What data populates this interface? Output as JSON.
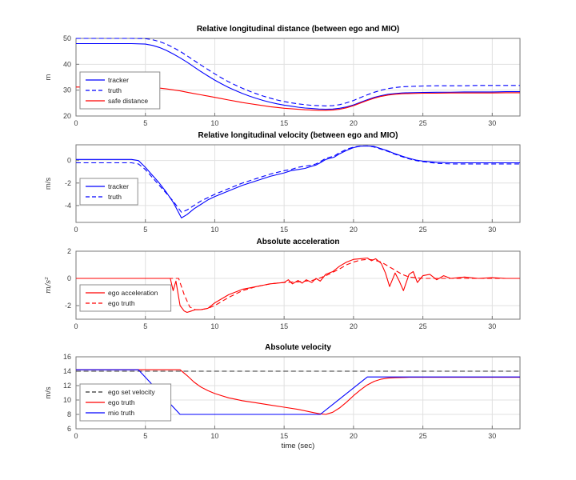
{
  "figure": {
    "xlabel": "time (sec)",
    "background": "#ffffff",
    "axis_color": "#7a7a7a",
    "tick_text_color": "#404040",
    "grid_color": "#e0e0e0",
    "legend_border_color": "#8c8c8c"
  },
  "chart_data": [
    {
      "type": "line",
      "title": "Relative longitudinal distance (between ego and MIO)",
      "ylabel": "m",
      "ylabel_style": "normal",
      "xlim": [
        0,
        32
      ],
      "ylim": [
        20,
        50
      ],
      "xticks": [
        0,
        5,
        10,
        15,
        20,
        25,
        30
      ],
      "yticks": [
        20,
        30,
        40,
        50
      ],
      "grid": true,
      "legend": {
        "offset": [
          5,
          42
        ]
      },
      "series": [
        {
          "name": "tracker",
          "color": "#0000ff",
          "dash": false,
          "x": [
            0,
            1,
            2,
            3,
            4,
            5,
            5.5,
            6,
            6.5,
            7,
            7.5,
            8,
            8.5,
            9,
            9.5,
            10,
            10.5,
            11,
            11.5,
            12,
            12.5,
            13,
            13.5,
            14,
            14.5,
            15,
            15.5,
            16,
            16.5,
            17,
            17.5,
            18,
            18.5,
            19,
            19.5,
            20,
            20.5,
            21,
            21.5,
            22,
            22.5,
            23,
            23.5,
            24,
            25,
            26,
            27,
            28,
            29,
            30,
            31,
            32
          ],
          "y": [
            48,
            48,
            48,
            48,
            48,
            47.8,
            47.3,
            46.5,
            45.4,
            44,
            42.5,
            40.8,
            39,
            37.2,
            35.5,
            33.9,
            32.4,
            31,
            29.8,
            28.7,
            27.7,
            26.8,
            26,
            25.3,
            24.7,
            24.2,
            23.8,
            23.4,
            23.1,
            22.9,
            22.7,
            22.6,
            22.7,
            23,
            23.5,
            24.3,
            25.3,
            26.3,
            27.2,
            27.9,
            28.4,
            28.7,
            28.9,
            29,
            29.1,
            29.2,
            29.2,
            29.3,
            29.3,
            29.3,
            29.4,
            29.4
          ]
        },
        {
          "name": "truth",
          "color": "#0000ff",
          "dash": true,
          "x": [
            0,
            1,
            2,
            3,
            4,
            5,
            5.5,
            6,
            6.5,
            7,
            7.5,
            8,
            8.5,
            9,
            9.5,
            10,
            10.5,
            11,
            11.5,
            12,
            12.5,
            13,
            13.5,
            14,
            14.5,
            15,
            15.5,
            16,
            16.5,
            17,
            17.5,
            18,
            18.5,
            19,
            19.5,
            20,
            20.5,
            21,
            21.5,
            22,
            22.5,
            23,
            23.5,
            24,
            25,
            26,
            27,
            28,
            29,
            30,
            31,
            32
          ],
          "y": [
            50,
            50,
            50,
            50,
            50,
            49.9,
            49.5,
            48.8,
            47.8,
            46.5,
            45,
            43.3,
            41.5,
            39.7,
            38,
            36.3,
            34.7,
            33.2,
            31.9,
            30.7,
            29.6,
            28.6,
            27.7,
            26.9,
            26.2,
            25.6,
            25.1,
            24.7,
            24.4,
            24.1,
            24,
            23.9,
            24,
            24.4,
            25.1,
            26,
            27.1,
            28.2,
            29.2,
            30,
            30.6,
            31,
            31.3,
            31.4,
            31.6,
            31.7,
            31.7,
            31.7,
            31.8,
            31.8,
            31.8,
            31.8
          ]
        },
        {
          "name": "safe distance",
          "color": "#ff0000",
          "dash": false,
          "x": [
            0,
            1,
            2,
            3,
            4,
            5,
            5.5,
            6,
            6.5,
            7,
            7.5,
            8,
            8.5,
            9,
            9.5,
            10,
            10.5,
            11,
            11.5,
            12,
            12.5,
            13,
            13.5,
            14,
            14.5,
            15,
            15.5,
            16,
            16.5,
            17,
            17.5,
            18,
            18.5,
            19,
            19.5,
            20,
            20.5,
            21,
            21.5,
            22,
            22.5,
            23,
            23.5,
            24,
            25,
            26,
            27,
            28,
            29,
            30,
            31,
            32
          ],
          "y": [
            31.2,
            31.2,
            31.2,
            31.2,
            31.2,
            31.1,
            31,
            30.8,
            30.5,
            30.1,
            29.7,
            29.2,
            28.7,
            28.2,
            27.7,
            27.2,
            26.7,
            26.2,
            25.7,
            25.2,
            24.8,
            24.4,
            24,
            23.6,
            23.3,
            23,
            22.8,
            22.6,
            22.4,
            22.3,
            22.2,
            22.2,
            22.3,
            22.6,
            23.2,
            24,
            25,
            26,
            26.9,
            27.6,
            28.1,
            28.4,
            28.6,
            28.7,
            28.8,
            28.8,
            28.9,
            28.9,
            28.9,
            28.9,
            29,
            29
          ]
        }
      ]
    },
    {
      "type": "line",
      "title": "Relative longitudinal velocity (between ego and MIO)",
      "ylabel": "m/s",
      "ylabel_style": "normal",
      "xlim": [
        0,
        32
      ],
      "ylim": [
        -5.5,
        1.4
      ],
      "xticks": [
        0,
        5,
        10,
        15,
        20,
        25,
        30
      ],
      "yticks": [
        -4,
        -2,
        0
      ],
      "grid": true,
      "legend": {
        "offset": [
          5,
          42
        ]
      },
      "series": [
        {
          "name": "tracker",
          "color": "#0000ff",
          "dash": false,
          "x": [
            0,
            1,
            2,
            3,
            4,
            4.5,
            5,
            5.5,
            6,
            6.5,
            7,
            7.3,
            7.6,
            8,
            8.5,
            9,
            9.5,
            10,
            11,
            12,
            13,
            14,
            15,
            15.5,
            16,
            16.5,
            17,
            17.3,
            17.6,
            18,
            18.3,
            18.6,
            19,
            19.5,
            20,
            20.5,
            21,
            21.5,
            22,
            22.5,
            23,
            23.5,
            24,
            24.5,
            25,
            26,
            27,
            28,
            29,
            30,
            31,
            32
          ],
          "y": [
            0.1,
            0.1,
            0.1,
            0.1,
            0.1,
            0,
            -0.6,
            -1.3,
            -2,
            -2.8,
            -3.7,
            -4.4,
            -5.1,
            -4.8,
            -4.3,
            -3.9,
            -3.5,
            -3.2,
            -2.7,
            -2.2,
            -1.8,
            -1.4,
            -1.1,
            -0.9,
            -0.8,
            -0.7,
            -0.5,
            -0.4,
            -0.2,
            0.1,
            0.2,
            0.3,
            0.6,
            0.9,
            1.15,
            1.28,
            1.3,
            1.25,
            1.05,
            0.85,
            0.6,
            0.4,
            0.2,
            0.05,
            -0.05,
            -0.15,
            -0.2,
            -0.2,
            -0.2,
            -0.2,
            -0.2,
            -0.2
          ]
        },
        {
          "name": "truth",
          "color": "#0000ff",
          "dash": true,
          "x": [
            0,
            1,
            2,
            3,
            4,
            4.5,
            5,
            5.5,
            6,
            6.5,
            7,
            7.3,
            7.6,
            8,
            8.5,
            9,
            9.5,
            10,
            11,
            12,
            13,
            14,
            15,
            15.5,
            16,
            16.5,
            17,
            17.3,
            17.6,
            18,
            18.3,
            18.6,
            19,
            19.5,
            20,
            20.5,
            21,
            21.5,
            22,
            22.5,
            23,
            23.5,
            24,
            24.5,
            25,
            26,
            27,
            28,
            29,
            30,
            31,
            32
          ],
          "y": [
            -0.2,
            -0.2,
            -0.2,
            -0.2,
            -0.2,
            -0.3,
            -0.8,
            -1.5,
            -2.2,
            -2.9,
            -3.6,
            -4.1,
            -4.6,
            -4.4,
            -4,
            -3.6,
            -3.3,
            -3,
            -2.5,
            -2,
            -1.6,
            -1.2,
            -0.9,
            -0.8,
            -0.6,
            -0.5,
            -0.4,
            -0.3,
            -0.1,
            0.2,
            0.3,
            0.4,
            0.7,
            1,
            1.2,
            1.3,
            1.3,
            1.2,
            1,
            0.8,
            0.55,
            0.35,
            0.15,
            0,
            -0.1,
            -0.25,
            -0.3,
            -0.3,
            -0.3,
            -0.3,
            -0.3,
            -0.3
          ]
        }
      ]
    },
    {
      "type": "line",
      "title": "Absolute acceleration",
      "ylabel": "m/s²",
      "ylabel_style": "italic",
      "xlim": [
        0,
        32
      ],
      "ylim": [
        -3,
        2
      ],
      "xticks": [
        0,
        5,
        10,
        15,
        20,
        25,
        30
      ],
      "yticks": [
        -2,
        0,
        2
      ],
      "grid": true,
      "legend": {
        "offset": [
          5,
          42
        ]
      },
      "series": [
        {
          "name": "ego acceleration",
          "color": "#ff0000",
          "dash": false,
          "x": [
            0,
            1,
            2,
            3,
            4,
            5,
            6,
            6.8,
            7,
            7.2,
            7.5,
            7.8,
            8,
            8.3,
            8.6,
            9,
            9.5,
            10,
            10.5,
            11,
            11.5,
            12,
            12.5,
            13,
            13.5,
            14,
            14.5,
            15,
            15.3,
            15.6,
            16,
            16.3,
            16.6,
            17,
            17.3,
            17.6,
            18,
            18.5,
            19,
            19.5,
            20,
            20.5,
            21,
            21.3,
            21.6,
            22,
            22.3,
            22.6,
            23,
            23.3,
            23.6,
            24,
            24.3,
            24.6,
            25,
            25.5,
            26,
            26.5,
            27,
            28,
            29,
            30,
            31,
            32
          ],
          "y": [
            0,
            0,
            0,
            0,
            0,
            0,
            0,
            0,
            -0.9,
            -0.2,
            -2.0,
            -2.4,
            -2.5,
            -2.4,
            -2.3,
            -2.3,
            -2.2,
            -1.8,
            -1.5,
            -1.2,
            -1.0,
            -0.8,
            -0.7,
            -0.6,
            -0.5,
            -0.4,
            -0.35,
            -0.3,
            -0.1,
            -0.4,
            -0.15,
            -0.35,
            -0.1,
            -0.3,
            0,
            -0.2,
            0.3,
            0.5,
            0.9,
            1.2,
            1.4,
            1.45,
            1.5,
            1.3,
            1.45,
            1.1,
            0.4,
            -0.6,
            0.4,
            -0.2,
            -0.9,
            0.3,
            0.5,
            -0.3,
            0.2,
            0.3,
            -0.1,
            0.2,
            0,
            0.1,
            0,
            0.05,
            0,
            0
          ]
        },
        {
          "name": "ego truth",
          "color": "#ff0000",
          "dash": true,
          "x": [
            0,
            2,
            4,
            6,
            7.4,
            7.8,
            8.2,
            8.6,
            9,
            9.5,
            10,
            11,
            12,
            13,
            14,
            15,
            16,
            17,
            17.5,
            18,
            18.5,
            19,
            19.5,
            20,
            20.5,
            21,
            21.5,
            22,
            22.5,
            23,
            23.5,
            24,
            25,
            26,
            28,
            30,
            32
          ],
          "y": [
            0,
            0,
            0,
            0,
            0,
            -1.2,
            -2.1,
            -2.3,
            -2.3,
            -2.2,
            -2.0,
            -1.4,
            -0.9,
            -0.6,
            -0.4,
            -0.3,
            -0.25,
            -0.15,
            0,
            0.2,
            0.45,
            0.7,
            1.0,
            1.2,
            1.35,
            1.4,
            1.35,
            1.2,
            0.9,
            0.6,
            0.3,
            0.1,
            0,
            0,
            0,
            0,
            0
          ]
        }
      ]
    },
    {
      "type": "line",
      "title": "Absolute velocity",
      "ylabel": "m/s",
      "ylabel_style": "normal",
      "xlim": [
        0,
        32
      ],
      "ylim": [
        6,
        16
      ],
      "xticks": [
        0,
        5,
        10,
        15,
        20,
        25,
        30
      ],
      "yticks": [
        6,
        8,
        10,
        12,
        14,
        16
      ],
      "grid": true,
      "legend": {
        "offset": [
          5,
          34
        ]
      },
      "series": [
        {
          "name": "ego set velocity",
          "color": "#333333",
          "dash": true,
          "x": [
            0,
            32
          ],
          "y": [
            14,
            14
          ]
        },
        {
          "name": "ego truth",
          "color": "#ff0000",
          "dash": false,
          "x": [
            0,
            2,
            4,
            6,
            7,
            7.5,
            8,
            8.5,
            9,
            9.5,
            10,
            10.5,
            11,
            11.5,
            12,
            13,
            14,
            15,
            16,
            17,
            17.5,
            18,
            18.5,
            19,
            19.5,
            20,
            20.5,
            21,
            21.5,
            22,
            22.5,
            23,
            24,
            25,
            26,
            28,
            30,
            32
          ],
          "y": [
            14.2,
            14.2,
            14.2,
            14.2,
            14.2,
            14.2,
            13.4,
            12.5,
            11.8,
            11.3,
            10.9,
            10.6,
            10.3,
            10.1,
            9.9,
            9.6,
            9.3,
            9.0,
            8.7,
            8.3,
            8.1,
            8.0,
            8.3,
            8.9,
            9.7,
            10.6,
            11.4,
            12.1,
            12.6,
            12.9,
            13.05,
            13.1,
            13.15,
            13.15,
            13.15,
            13.15,
            13.15,
            13.15
          ]
        },
        {
          "name": "mio truth",
          "color": "#0000ff",
          "dash": false,
          "x": [
            0,
            4.5,
            7.5,
            17.6,
            21,
            32
          ],
          "y": [
            14.2,
            14.2,
            8,
            8,
            13.2,
            13.2
          ]
        }
      ]
    }
  ]
}
